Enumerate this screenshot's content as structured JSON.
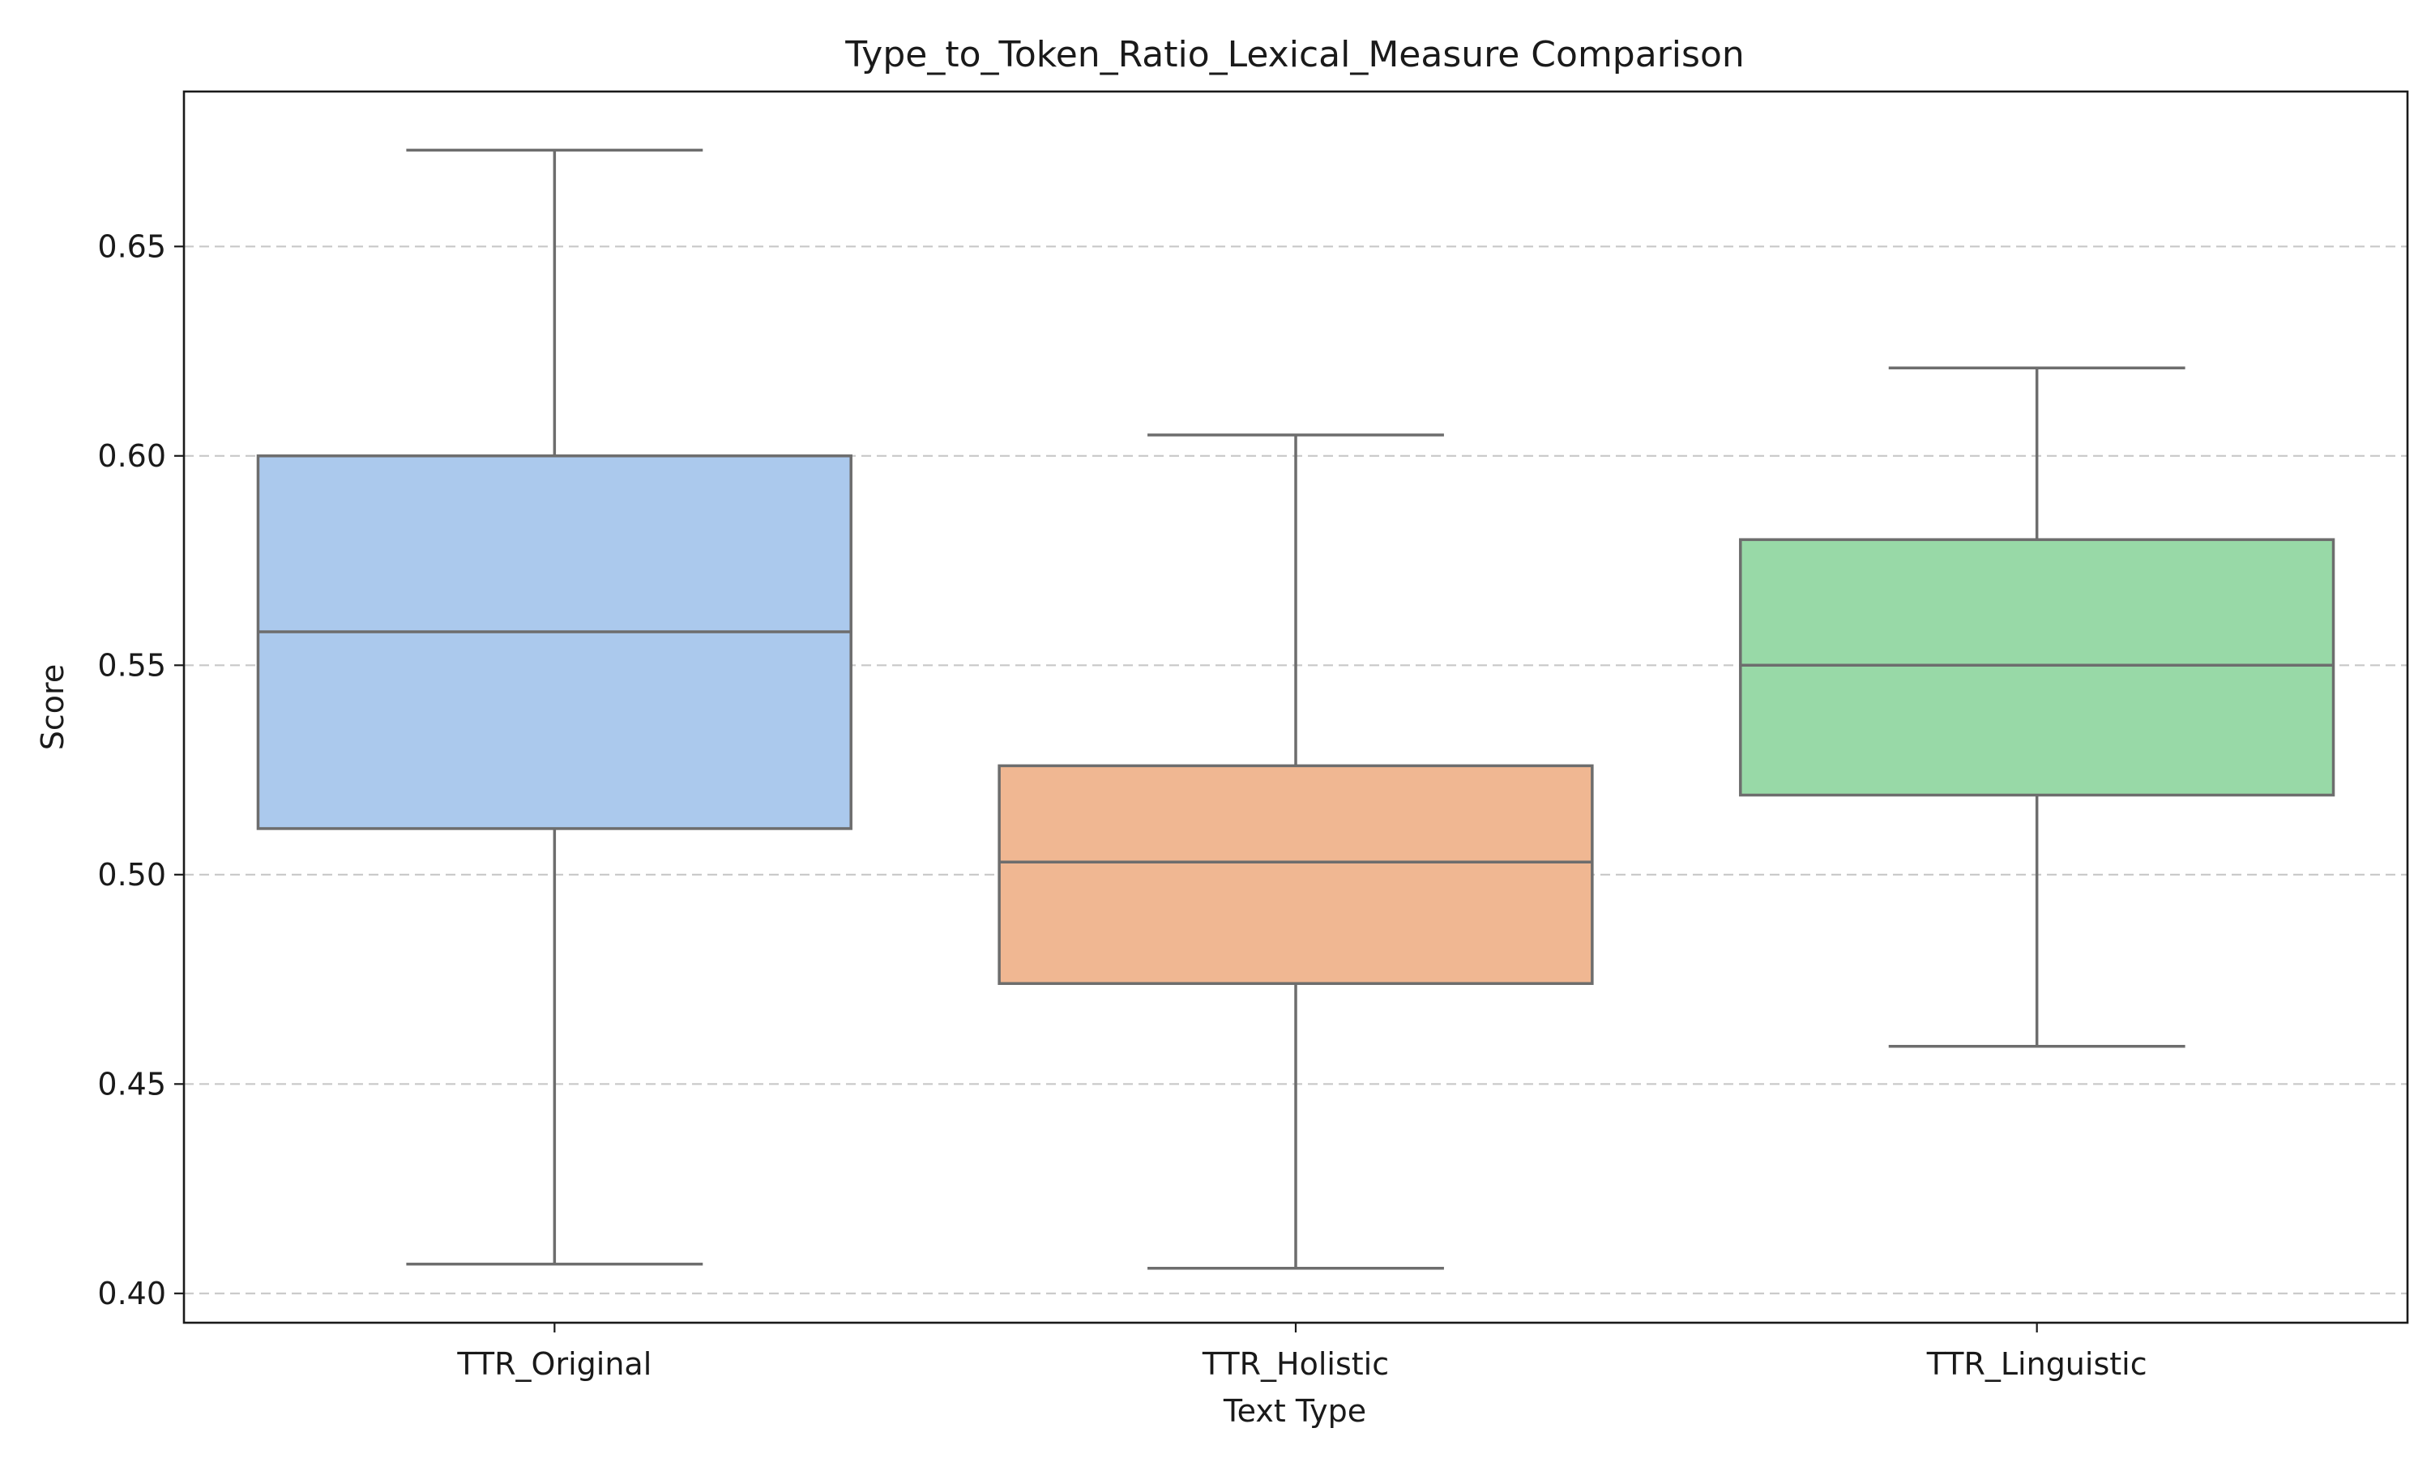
{
  "chart_data": {
    "type": "box",
    "title": "Type_to_Token_Ratio_Lexical_Measure Comparison",
    "xlabel": "Text Type",
    "ylabel": "Score",
    "ylim": [
      0.393,
      0.687
    ],
    "yticks": [
      0.4,
      0.45,
      0.5,
      0.55,
      0.6,
      0.65
    ],
    "ytick_labels": [
      "0.40",
      "0.45",
      "0.50",
      "0.55",
      "0.60",
      "0.65"
    ],
    "grid": "y-dashed",
    "categories": [
      "TTR_Original",
      "TTR_Holistic",
      "TTR_Linguistic"
    ],
    "boxes": [
      {
        "category": "TTR_Original",
        "whisker_low": 0.407,
        "q1": 0.511,
        "median": 0.558,
        "q3": 0.6,
        "whisker_high": 0.673,
        "color": "#abc9ed"
      },
      {
        "category": "TTR_Holistic",
        "whisker_low": 0.406,
        "q1": 0.474,
        "median": 0.503,
        "q3": 0.526,
        "whisker_high": 0.605,
        "color": "#f0b792"
      },
      {
        "category": "TTR_Linguistic",
        "whisker_low": 0.459,
        "q1": 0.519,
        "median": 0.55,
        "q3": 0.58,
        "whisker_high": 0.621,
        "color": "#98d9a7"
      }
    ]
  }
}
